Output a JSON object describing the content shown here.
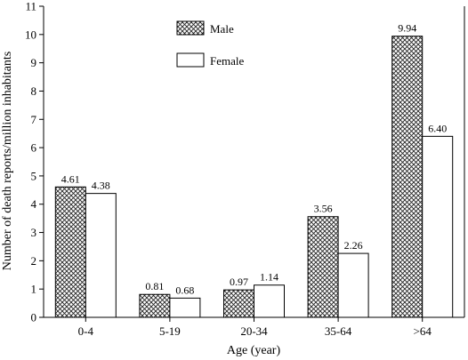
{
  "chart_data": {
    "type": "bar",
    "categories": [
      "0-4",
      "5-19",
      "20-34",
      "35-64",
      ">64"
    ],
    "series": [
      {
        "name": "Male",
        "values": [
          4.61,
          0.81,
          0.97,
          3.56,
          9.94
        ],
        "labels": [
          "4.61",
          "0.81",
          "0.97",
          "3.56",
          "9.94"
        ],
        "pattern": "crosshatch"
      },
      {
        "name": "Female",
        "values": [
          4.38,
          0.68,
          1.14,
          2.26,
          6.4
        ],
        "labels": [
          "4.38",
          "0.68",
          "1.14",
          "2.26",
          "6.40"
        ],
        "pattern": "none"
      }
    ],
    "xlabel": "Age (year)",
    "ylabel": "Number of death reports/million inhabitants",
    "ylim": [
      0,
      11
    ],
    "yticks": [
      0,
      1,
      2,
      3,
      4,
      5,
      6,
      7,
      8,
      9,
      10,
      11
    ],
    "grid": false,
    "legend_position": "top-center"
  }
}
